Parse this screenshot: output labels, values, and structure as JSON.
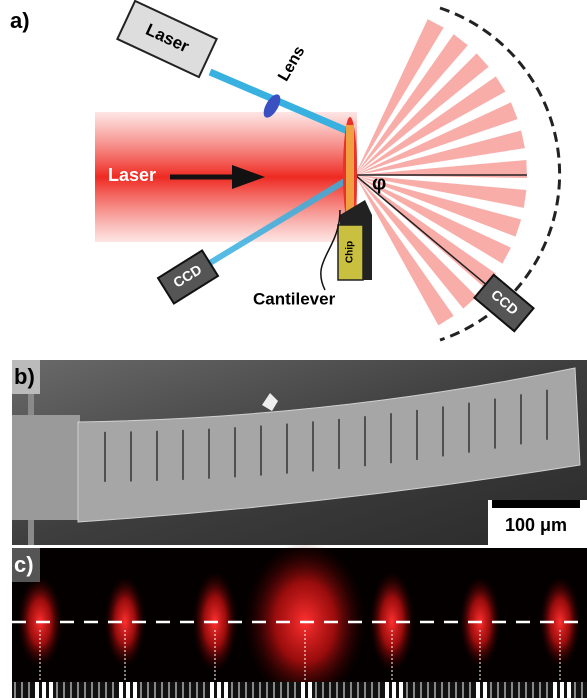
{
  "panel_a": {
    "label": "a)",
    "laser_top": "Laser",
    "lens": "Lens",
    "laser_beam": "Laser",
    "ccd_left": "CCD",
    "chip": "Chip",
    "cantilever": "Cantilever",
    "ccd_right": "CCD",
    "angle": "φ"
  },
  "panel_b": {
    "label": "b)",
    "scale_bar": "100 μm"
  },
  "panel_c": {
    "label": "c)"
  }
}
